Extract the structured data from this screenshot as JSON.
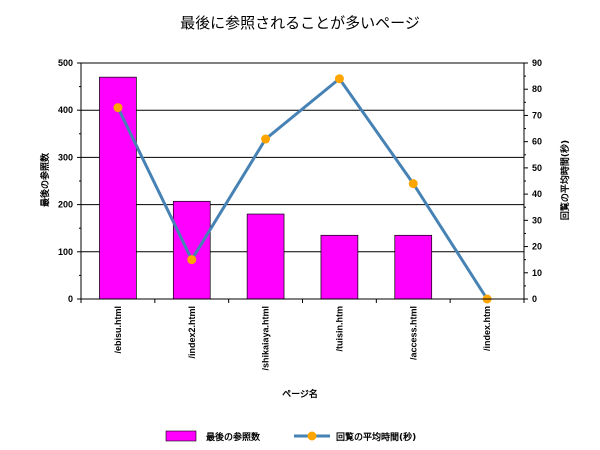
{
  "chart_data": {
    "type": "bar",
    "title": "最後に参照されることが多いページ",
    "xlabel": "ページ名",
    "ylabel": "最後の参照数",
    "y2label": "回覧の平均時間(秒)",
    "categories": [
      "/ebisu.html",
      "/index2.html",
      "/shikaiaya.html",
      "/tuisin.htm",
      "/access.html",
      "/index.htm"
    ],
    "ylim": [
      0,
      500
    ],
    "y_ticks": [
      0,
      100,
      200,
      300,
      400,
      500
    ],
    "y2lim": [
      0,
      90
    ],
    "y2_ticks": [
      0,
      10,
      20,
      30,
      40,
      50,
      60,
      70,
      80,
      90
    ],
    "grid": true,
    "legend_position": "bottom",
    "series": [
      {
        "name": "最後の参照数",
        "type": "bar",
        "axis": "left",
        "color": "#ff00ff",
        "values": [
          470,
          207,
          180,
          135,
          135,
          0
        ]
      },
      {
        "name": "回覧の平均時間(秒)",
        "type": "line",
        "axis": "right",
        "color": "#4682b4",
        "marker_color": "#ffa500",
        "values": [
          73,
          15,
          61,
          84,
          44,
          0
        ]
      }
    ]
  }
}
